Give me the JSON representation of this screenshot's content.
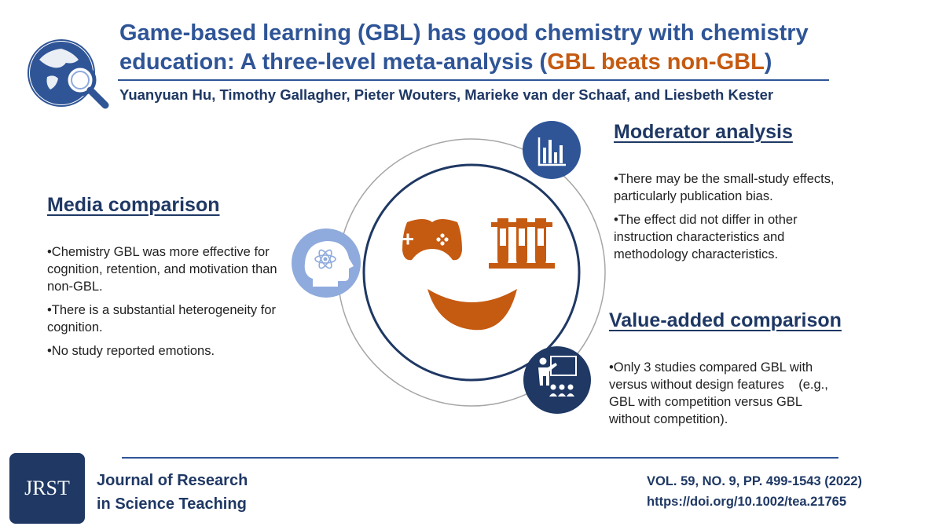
{
  "header": {
    "title_line1": "Game-based learning (GBL) has good chemistry with chemistry",
    "title_line2_part1": "education: A three-level meta-analysis (",
    "title_line2_accent": "GBL beats non-GBL",
    "title_line2_part2": ")",
    "authors": "Yuanyuan Hu, Timothy Gallagher, Pieter Wouters, Marieke van der Schaaf, and Liesbeth Kester"
  },
  "media": {
    "heading": "Media comparison",
    "bullets": [
      "•Chemistry GBL was more effective for cognition, retention, and motivation than non-GBL.",
      "•There is a substantial heterogeneity for cognition.",
      "•No study reported emotions."
    ]
  },
  "moderator": {
    "heading": "Moderator analysis",
    "bullets": [
      "•There may be the small-study effects, particularly publication bias.",
      "•The effect did not differ in other instruction characteristics and methodology  characteristics."
    ]
  },
  "value_added": {
    "heading": "Value-added comparison",
    "bullets": [
      "•Only 3 studies compared GBL with versus without design features    (e.g., GBL with competition versus GBL without competition)."
    ]
  },
  "footer": {
    "logo_text": "JRST",
    "journal_line1": "Journal of Research",
    "journal_line2": "in Science Teaching",
    "volume": "VOL. 59, NO. 9, PP. 499-1543 (2022)",
    "doi": "https://doi.org/10.1002/tea.21765"
  },
  "colors": {
    "navy": "#1F3864",
    "blue": "#2F5597",
    "orange": "#C55A11",
    "light_blue": "#8FAADC"
  },
  "icons": [
    "globe-search-icon",
    "bar-chart-icon",
    "head-atom-icon",
    "gamepad-icon",
    "test-tubes-icon",
    "smile-icon",
    "teacher-classroom-icon"
  ]
}
